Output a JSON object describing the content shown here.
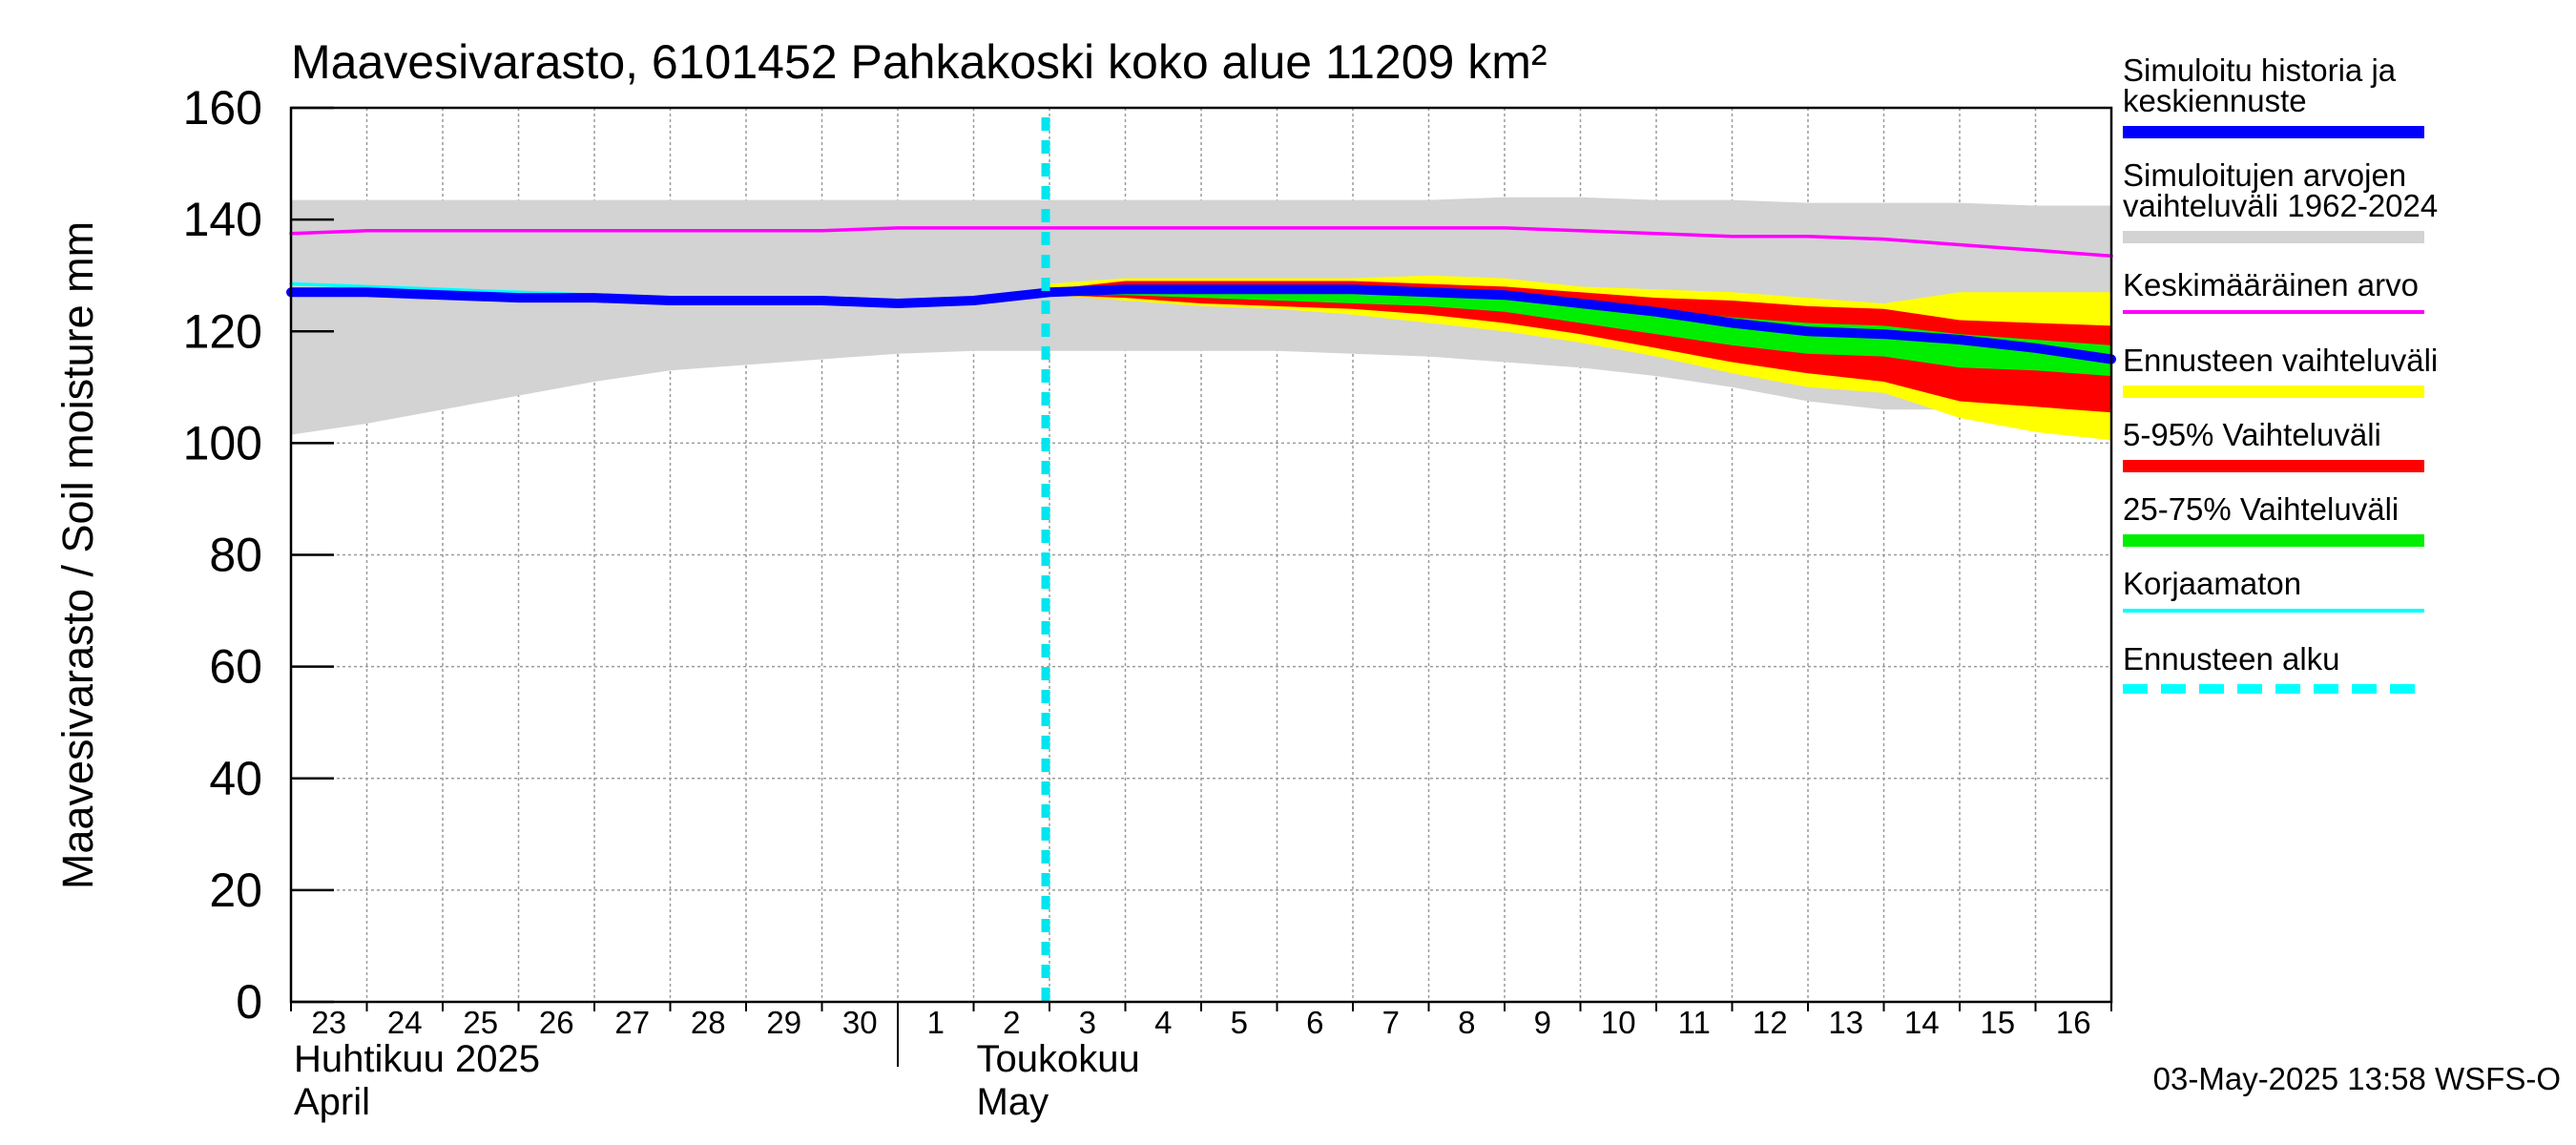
{
  "chart_data": {
    "type": "area",
    "title": "Maavesivarasto, 6101452 Pahkakoski koko alue 11209 km²",
    "ylabel": "Maavesivarasto / Soil moisture   mm",
    "ylim": [
      0,
      160
    ],
    "yticks": [
      0,
      20,
      40,
      60,
      80,
      100,
      120,
      140,
      160
    ],
    "x_start_day": "2025-04-23",
    "x_end_index": 24.0,
    "day_labels": [
      "23",
      "24",
      "25",
      "26",
      "27",
      "28",
      "29",
      "30",
      "1",
      "2",
      "3",
      "4",
      "5",
      "6",
      "7",
      "8",
      "9",
      "10",
      "11",
      "12",
      "13",
      "14",
      "15",
      "16"
    ],
    "month_labels": [
      {
        "line1": "Huhtikuu  2025",
        "line2": "April",
        "start_index": 0
      },
      {
        "line1": "Toukokuu",
        "line2": "May",
        "start_index": 9
      }
    ],
    "month_divider_index": 8,
    "forecast_start_index": 10,
    "series": [
      {
        "name": "Simuloitujen arvojen vaihteluväli 1962-2024",
        "kind": "band",
        "x": [
          0,
          1,
          2,
          3,
          4,
          5,
          6,
          7,
          8,
          9,
          10,
          11,
          12,
          13,
          14,
          15,
          16,
          17,
          18,
          19,
          20,
          21,
          22,
          23,
          24
        ],
        "low": [
          101.5,
          103.5,
          106,
          108.5,
          111,
          113,
          114,
          115,
          116,
          116.5,
          116.5,
          116.5,
          116.5,
          116.5,
          116,
          115.5,
          114.5,
          113.5,
          112,
          110,
          107.5,
          106,
          106,
          105,
          104
        ],
        "high": [
          143.5,
          143.5,
          143.5,
          143.5,
          143.5,
          143.5,
          143.5,
          143.5,
          143.5,
          143.5,
          143.5,
          143.5,
          143.5,
          143.5,
          143.5,
          143.5,
          144,
          144,
          143.5,
          143.5,
          143,
          143,
          143,
          142.5,
          142.5
        ]
      },
      {
        "name": "Ennusteen vaihteluväli",
        "kind": "band",
        "x": [
          10,
          11,
          12,
          13,
          14,
          15,
          16,
          17,
          18,
          19,
          20,
          21,
          22,
          23,
          24
        ],
        "low": [
          126.5,
          125.5,
          124.5,
          124,
          123,
          121.5,
          120,
          118,
          115.5,
          112.5,
          110,
          109,
          104.5,
          102,
          100.5
        ],
        "high": [
          128.5,
          129.5,
          129.5,
          129.5,
          129.5,
          130,
          129.5,
          128,
          127.5,
          127,
          126,
          125,
          127,
          127,
          127
        ]
      },
      {
        "name": "5-95% Vaihteluväli",
        "kind": "band",
        "x": [
          10,
          11,
          12,
          13,
          14,
          15,
          16,
          17,
          18,
          19,
          20,
          21,
          22,
          23,
          24
        ],
        "low": [
          126.5,
          126,
          125,
          124.5,
          124,
          123,
          121.5,
          119.5,
          117,
          114.5,
          112.5,
          111,
          107.5,
          106.5,
          105.5
        ],
        "high": [
          127.5,
          129,
          129,
          129,
          129,
          128.5,
          128,
          127,
          126,
          125.5,
          124.5,
          124,
          122,
          121.5,
          121
        ]
      },
      {
        "name": "25-75% Vaihteluväli",
        "kind": "band",
        "x": [
          10,
          11,
          12,
          13,
          14,
          15,
          16,
          17,
          18,
          19,
          20,
          21,
          22,
          23,
          24
        ],
        "low": [
          126.5,
          126.5,
          126,
          125.5,
          125,
          124.5,
          123.5,
          121.5,
          119.5,
          117.5,
          116,
          115.5,
          113.5,
          113,
          112
        ],
        "high": [
          127,
          128,
          128,
          128,
          128,
          127.5,
          127,
          125.5,
          124,
          122.5,
          121.5,
          121,
          119.5,
          118.5,
          117.5
        ]
      },
      {
        "name": "Keskimääräinen arvo",
        "kind": "line",
        "x": [
          0,
          1,
          2,
          3,
          4,
          5,
          6,
          7,
          8,
          9,
          10,
          11,
          12,
          13,
          14,
          15,
          16,
          17,
          18,
          19,
          20,
          21,
          22,
          23,
          24
        ],
        "y": [
          137.5,
          138,
          138,
          138,
          138,
          138,
          138,
          138,
          138.5,
          138.5,
          138.5,
          138.5,
          138.5,
          138.5,
          138.5,
          138.5,
          138.5,
          138,
          137.5,
          137,
          137,
          136.5,
          135.5,
          134.5,
          133.5
        ]
      },
      {
        "name": "Korjaamaton",
        "kind": "line",
        "x": [
          0,
          1,
          2,
          3,
          4,
          5,
          6,
          7,
          8,
          8.4
        ],
        "y": [
          128.5,
          128,
          127.5,
          127,
          126.5,
          126,
          125.5,
          125.5,
          124.5,
          125
        ]
      },
      {
        "name": "Simuloitu historia ja keskiennuste",
        "kind": "line",
        "x": [
          0,
          1,
          2,
          3,
          4,
          5,
          6,
          7,
          8,
          9,
          10,
          11,
          12,
          13,
          14,
          15,
          16,
          17,
          18,
          19,
          20,
          21,
          22,
          23,
          24
        ],
        "y": [
          127,
          127,
          126.5,
          126,
          126,
          125.5,
          125.5,
          125.5,
          125,
          125.5,
          127,
          127.5,
          127.5,
          127.5,
          127.5,
          127,
          126.5,
          125,
          123.5,
          121.5,
          120,
          119.5,
          118.5,
          117,
          115
        ]
      }
    ],
    "legend": [
      {
        "label": "Simuloitu historia ja\nkeskiennuste",
        "color": "#0000ff",
        "style": "solid"
      },
      {
        "label": "Simuloitujen arvojen\nvaihteluväli 1962-2024",
        "color": "#d3d3d3",
        "style": "solid"
      },
      {
        "label": "Keskimääräinen arvo",
        "color": "#ff00ff",
        "style": "solid"
      },
      {
        "label": "Ennusteen vaihteluväli",
        "color": "#ffff00",
        "style": "solid"
      },
      {
        "label": "5-95% Vaihteluväli",
        "color": "#ff0000",
        "style": "solid"
      },
      {
        "label": "25-75% Vaihteluväli",
        "color": "#00ee00",
        "style": "solid"
      },
      {
        "label": "Korjaamaton",
        "color": "#00ffff",
        "style": "solid"
      },
      {
        "label": "Ennusteen alku",
        "color": "#00ffff",
        "style": "dashed"
      }
    ]
  },
  "footer": {
    "timestamp": "03-May-2025 13:58 WSFS-O"
  }
}
